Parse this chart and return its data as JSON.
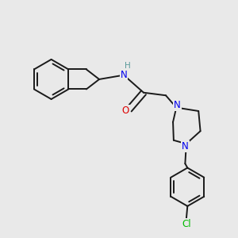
{
  "background_color": "#e9e9e9",
  "bond_color": "#1a1a1a",
  "N_color": "#0000ee",
  "O_color": "#dd0000",
  "H_color": "#5a9a9a",
  "Cl_color": "#00bb00",
  "line_width": 1.4,
  "figsize": [
    3.0,
    3.0
  ],
  "dpi": 100,
  "xlim": [
    0,
    10
  ],
  "ylim": [
    0,
    10
  ]
}
